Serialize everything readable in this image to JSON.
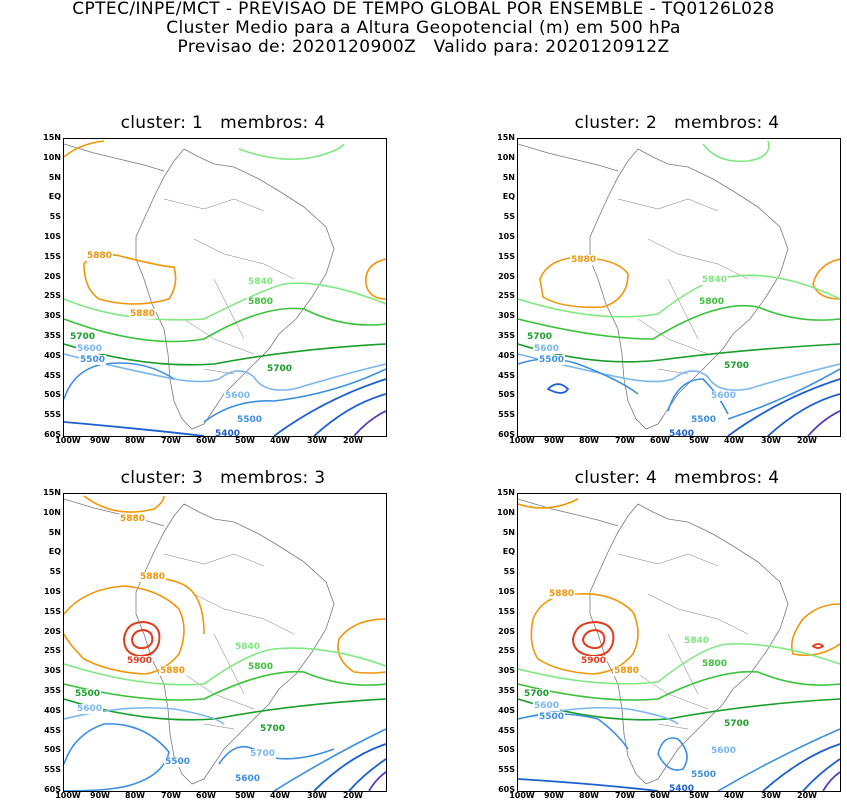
{
  "header": {
    "line1": "CPTEC/INPE/MCT - PREVISAO DE TEMPO GLOBAL POR ENSEMBLE - TQ0126L028",
    "line2": "Cluster Medio para a Altura Geopotencial (m) em 500 hPa",
    "line3": "Previsao de: 2020120900Z   Valido para: 2020120912Z"
  },
  "lat_labels": [
    "15N",
    "10N",
    "5N",
    "EQ",
    "5S",
    "10S",
    "15S",
    "20S",
    "25S",
    "30S",
    "35S",
    "40S",
    "45S",
    "50S",
    "55S",
    "60S"
  ],
  "lon_labels": [
    "100W",
    "90W",
    "80W",
    "70W",
    "60W",
    "50W",
    "40W",
    "30W",
    "20W"
  ],
  "colors": {
    "c5400": "#1e5fd0",
    "c5500": "#3d8fe0",
    "c5600": "#7ab6f0",
    "c5700": "#1a9e2a",
    "c5800": "#3cc23c",
    "c5840": "#80e880",
    "c5880": "#f0960a",
    "c5900": "#e03c1e",
    "coast": "#7a7a7a",
    "deep": "#5a3cbe"
  },
  "panels": [
    {
      "title": "cluster: 1   membros: 4",
      "labels": [
        "5880",
        "5880",
        "5840",
        "5800",
        "5700",
        "5600",
        "5500",
        "5700",
        "5600",
        "5500",
        "5400"
      ]
    },
    {
      "title": "cluster: 2   membros: 4",
      "labels": [
        "5880",
        "5840",
        "5800",
        "5700",
        "5600",
        "5500",
        "5700",
        "5600",
        "5500",
        "5400"
      ]
    },
    {
      "title": "cluster: 3   membros: 3",
      "labels": [
        "5880",
        "5880",
        "5900",
        "5880",
        "5840",
        "5800",
        "5700",
        "5600",
        "5500",
        "5700",
        "5600",
        "5500"
      ]
    },
    {
      "title": "cluster: 4   membros: 4",
      "labels": [
        "5880",
        "5900",
        "5880",
        "5840",
        "5800",
        "5700",
        "5600",
        "5500",
        "5700",
        "5600",
        "5500",
        "5400"
      ]
    }
  ]
}
